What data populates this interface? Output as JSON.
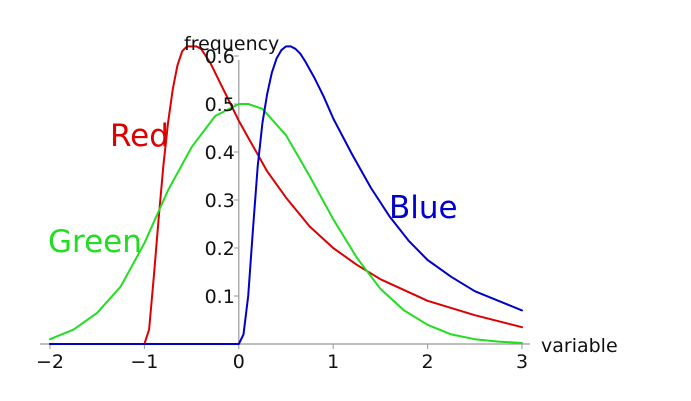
{
  "chart_data": {
    "type": "line",
    "xlabel": "variable",
    "ylabel": "frequency",
    "xlim": [
      -2,
      3
    ],
    "ylim": [
      0,
      0.65
    ],
    "x_ticks": [
      -2,
      -1,
      0,
      1,
      2,
      3
    ],
    "y_ticks": [
      0.1,
      0.2,
      0.3,
      0.4,
      0.5,
      0.6
    ],
    "x_tick_labels": [
      "−2",
      "−1",
      "0",
      "1",
      "2",
      "3"
    ],
    "y_tick_labels": [
      "0.1",
      "0.2",
      "0.3",
      "0.4",
      "0.5",
      "0.6"
    ],
    "series": [
      {
        "name": "Red",
        "color": "#dd0000",
        "x": [
          -2,
          -1.2,
          -1.0,
          -0.95,
          -0.9,
          -0.85,
          -0.8,
          -0.75,
          -0.7,
          -0.65,
          -0.6,
          -0.55,
          -0.5,
          -0.45,
          -0.4,
          -0.35,
          -0.3,
          -0.25,
          -0.2,
          -0.1,
          0,
          0.1,
          0.2,
          0.3,
          0.5,
          0.75,
          1.0,
          1.25,
          1.5,
          2.0,
          2.5,
          3.0
        ],
        "y": [
          0,
          0,
          0,
          0.03,
          0.14,
          0.26,
          0.37,
          0.46,
          0.53,
          0.58,
          0.61,
          0.62,
          0.62,
          0.62,
          0.615,
          0.6,
          0.585,
          0.565,
          0.545,
          0.505,
          0.465,
          0.43,
          0.395,
          0.36,
          0.305,
          0.245,
          0.2,
          0.165,
          0.135,
          0.09,
          0.06,
          0.035
        ]
      },
      {
        "name": "Green",
        "color": "#22dd22",
        "x": [
          -2,
          -1.75,
          -1.5,
          -1.25,
          -1.0,
          -0.75,
          -0.5,
          -0.25,
          0,
          0.1,
          0.25,
          0.5,
          0.75,
          1.0,
          1.25,
          1.5,
          1.75,
          2.0,
          2.25,
          2.5,
          2.75,
          3.0
        ],
        "y": [
          0.01,
          0.03,
          0.065,
          0.12,
          0.21,
          0.32,
          0.41,
          0.475,
          0.5,
          0.5,
          0.49,
          0.435,
          0.35,
          0.26,
          0.18,
          0.115,
          0.07,
          0.04,
          0.02,
          0.01,
          0.005,
          0.002
        ]
      },
      {
        "name": "Blue",
        "color": "#0000cc",
        "x": [
          -2,
          -0.1,
          0,
          0.05,
          0.1,
          0.15,
          0.2,
          0.25,
          0.3,
          0.35,
          0.4,
          0.45,
          0.5,
          0.55,
          0.6,
          0.65,
          0.7,
          0.8,
          0.9,
          1.0,
          1.2,
          1.4,
          1.6,
          1.8,
          2.0,
          2.25,
          2.5,
          2.75,
          3.0
        ],
        "y": [
          0,
          0,
          0,
          0.02,
          0.1,
          0.24,
          0.37,
          0.46,
          0.52,
          0.565,
          0.595,
          0.612,
          0.62,
          0.62,
          0.615,
          0.605,
          0.59,
          0.555,
          0.515,
          0.47,
          0.395,
          0.325,
          0.265,
          0.215,
          0.175,
          0.14,
          0.11,
          0.09,
          0.07
        ]
      }
    ],
    "series_labels": [
      "Red",
      "Green",
      "Blue"
    ]
  }
}
